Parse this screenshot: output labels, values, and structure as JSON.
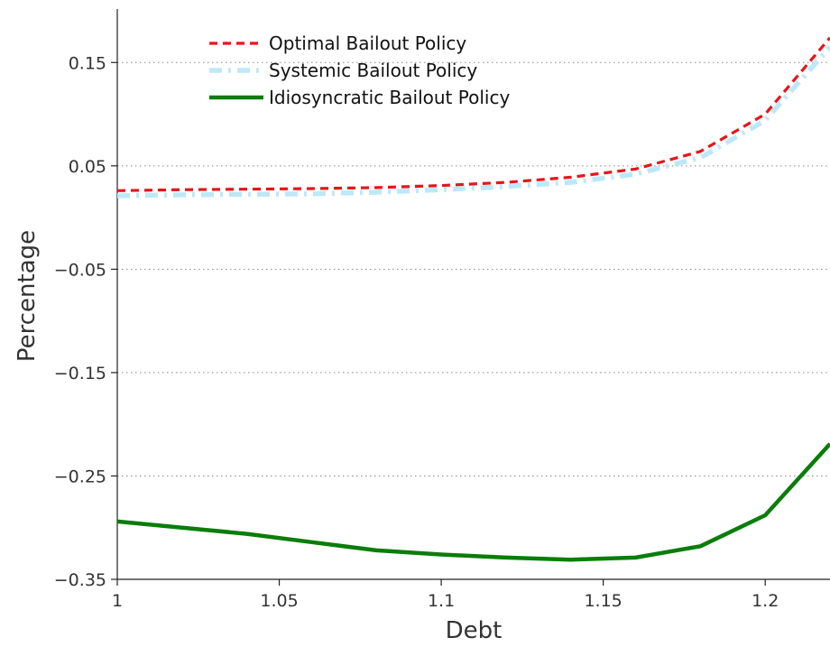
{
  "chart_data": {
    "type": "line",
    "title": "",
    "xlabel": "Debt",
    "ylabel": "Percentage",
    "xlim": [
      1,
      1.22
    ],
    "ylim": [
      -0.35,
      0.2
    ],
    "x_ticks": [
      1,
      1.05,
      1.1,
      1.15,
      1.2
    ],
    "x_tick_labels": [
      "1",
      "1.05",
      "1.1",
      "1.15",
      "1.2"
    ],
    "y_ticks": [
      0.15,
      0.05,
      -0.05,
      -0.15,
      -0.25,
      -0.35
    ],
    "y_tick_labels": [
      "0.15",
      "0.05",
      "−0.05",
      "−0.15",
      "−0.25",
      "−0.35"
    ],
    "grid": "horizontal dotted",
    "legend_position": "top-left",
    "series": [
      {
        "name": "Optimal Bailout Policy",
        "color": "#e8141b",
        "style": "dashed",
        "x": [
          1,
          1.02,
          1.04,
          1.06,
          1.08,
          1.1,
          1.12,
          1.14,
          1.16,
          1.18,
          1.2,
          1.22
        ],
        "y": [
          0.026,
          0.027,
          0.0275,
          0.028,
          0.029,
          0.031,
          0.034,
          0.039,
          0.047,
          0.064,
          0.1,
          0.174
        ]
      },
      {
        "name": "Systemic Bailout Policy",
        "color": "#bde8f8",
        "style": "dash-dot",
        "x": [
          1,
          1.02,
          1.04,
          1.06,
          1.08,
          1.1,
          1.12,
          1.14,
          1.16,
          1.18,
          1.2,
          1.22
        ],
        "y": [
          0.021,
          0.022,
          0.0225,
          0.023,
          0.0245,
          0.027,
          0.03,
          0.034,
          0.042,
          0.058,
          0.094,
          0.165
        ]
      },
      {
        "name": "Idiosyncratic Bailout Policy",
        "color": "#0a7d0a",
        "style": "solid",
        "x": [
          1,
          1.02,
          1.04,
          1.06,
          1.08,
          1.1,
          1.12,
          1.14,
          1.16,
          1.18,
          1.2,
          1.22
        ],
        "y": [
          -0.294,
          -0.3,
          -0.306,
          -0.314,
          -0.322,
          -0.326,
          -0.329,
          -0.331,
          -0.329,
          -0.318,
          -0.288,
          -0.219
        ]
      }
    ]
  }
}
